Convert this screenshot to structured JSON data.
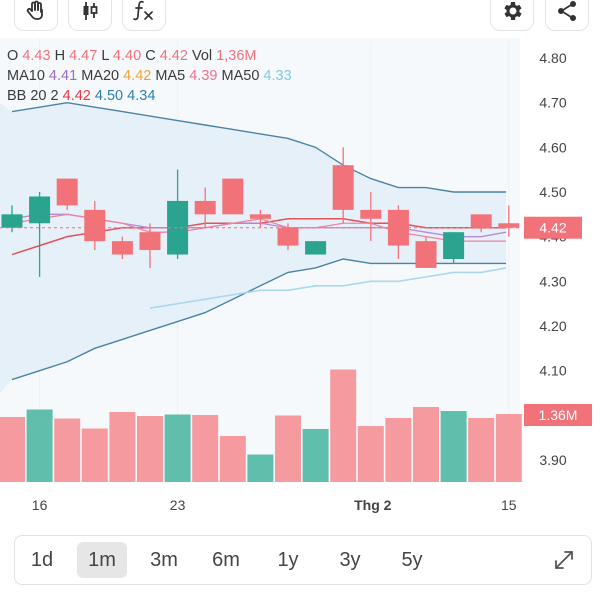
{
  "toolbar": {
    "buttons": [
      {
        "name": "drawing-tools-button",
        "icon": "hand-icon"
      },
      {
        "name": "chart-type-button",
        "icon": "candlestick-icon"
      },
      {
        "name": "indicators-button",
        "icon": "function-icon"
      },
      {
        "name": "settings-button",
        "icon": "gear-icon"
      },
      {
        "name": "share-button",
        "icon": "share-icon"
      }
    ]
  },
  "legend": {
    "line1": [
      {
        "label": "O",
        "value": "4.43",
        "color": "#f2727a"
      },
      {
        "label": "H",
        "value": "4.47",
        "color": "#f2727a"
      },
      {
        "label": "L",
        "value": "4.40",
        "color": "#f2727a"
      },
      {
        "label": "C",
        "value": "4.42",
        "color": "#f2727a"
      },
      {
        "label": "Vol",
        "value": "1,36M",
        "color": "#f2727a"
      }
    ],
    "line2": [
      {
        "label": "MA10",
        "value": "4.41",
        "color": "#9a6cc6"
      },
      {
        "label": "MA20",
        "value": "4.42",
        "color": "#f0a23a"
      },
      {
        "label": "MA5",
        "value": "4.39",
        "color": "#ef6f8a"
      },
      {
        "label": "MA50",
        "value": "4.33",
        "color": "#7fc9ea"
      }
    ],
    "line3": [
      {
        "label": "BB 20 2",
        "value": "4.42",
        "color": "#e53943"
      },
      {
        "label": "",
        "value": "4.50",
        "color": "#2f7fb0"
      },
      {
        "label": "",
        "value": "4.34",
        "color": "#2f7fb0"
      }
    ]
  },
  "timeframes": {
    "items": [
      "1d",
      "1m",
      "3m",
      "6m",
      "1y",
      "3y",
      "5y"
    ],
    "active": "1m"
  },
  "colors": {
    "up": "#2aa48e",
    "down": "#f2727a",
    "bb_band": "#4a83a6",
    "bb_mid": "#e2525a",
    "ma5": "#ef84a0",
    "ma10": "#b58bd6",
    "ma50": "#a9d8ef"
  },
  "chart_data": {
    "type": "candlestick",
    "yticks": [
      "4.80",
      "4.70",
      "4.60",
      "4.50",
      "4.40",
      "4.30",
      "4.20",
      "4.10",
      "3.90"
    ],
    "ylim": [
      3.86,
      4.84
    ],
    "x_labels": [
      {
        "index": 1,
        "label": "16"
      },
      {
        "index": 6,
        "label": "23"
      },
      {
        "index": 13,
        "label": "Thg 2"
      },
      {
        "index": 18,
        "label": "15"
      }
    ],
    "last_price_label": "4.42",
    "volume_label": "1.36M",
    "candles": [
      {
        "o": 4.42,
        "h": 4.47,
        "l": 4.41,
        "c": 4.45
      },
      {
        "o": 4.43,
        "h": 4.5,
        "l": 4.31,
        "c": 4.49
      },
      {
        "o": 4.53,
        "h": 4.53,
        "l": 4.46,
        "c": 4.47
      },
      {
        "o": 4.46,
        "h": 4.48,
        "l": 4.37,
        "c": 4.39
      },
      {
        "o": 4.39,
        "h": 4.4,
        "l": 4.35,
        "c": 4.36
      },
      {
        "o": 4.41,
        "h": 4.43,
        "l": 4.33,
        "c": 4.37
      },
      {
        "o": 4.36,
        "h": 4.55,
        "l": 4.35,
        "c": 4.48
      },
      {
        "o": 4.48,
        "h": 4.51,
        "l": 4.42,
        "c": 4.45
      },
      {
        "o": 4.53,
        "h": 4.53,
        "l": 4.45,
        "c": 4.45
      },
      {
        "o": 4.45,
        "h": 4.46,
        "l": 4.42,
        "c": 4.44
      },
      {
        "o": 4.42,
        "h": 4.43,
        "l": 4.37,
        "c": 4.38
      },
      {
        "o": 4.36,
        "h": 4.39,
        "l": 4.36,
        "c": 4.39
      },
      {
        "o": 4.56,
        "h": 4.6,
        "l": 4.43,
        "c": 4.46
      },
      {
        "o": 4.46,
        "h": 4.5,
        "l": 4.39,
        "c": 4.44
      },
      {
        "o": 4.46,
        "h": 4.47,
        "l": 4.35,
        "c": 4.38
      },
      {
        "o": 4.39,
        "h": 4.4,
        "l": 4.33,
        "c": 4.33
      },
      {
        "o": 4.35,
        "h": 4.41,
        "l": 4.34,
        "c": 4.41
      },
      {
        "o": 4.45,
        "h": 4.45,
        "l": 4.41,
        "c": 4.42
      },
      {
        "o": 4.43,
        "h": 4.47,
        "l": 4.4,
        "c": 4.42
      }
    ],
    "volume": [
      {
        "v": 1.3,
        "up": false
      },
      {
        "v": 1.45,
        "up": true
      },
      {
        "v": 1.27,
        "up": false
      },
      {
        "v": 1.07,
        "up": false
      },
      {
        "v": 1.4,
        "up": false
      },
      {
        "v": 1.32,
        "up": false
      },
      {
        "v": 1.35,
        "up": true
      },
      {
        "v": 1.34,
        "up": false
      },
      {
        "v": 0.92,
        "up": false
      },
      {
        "v": 0.55,
        "up": true
      },
      {
        "v": 1.33,
        "up": false
      },
      {
        "v": 1.06,
        "up": true
      },
      {
        "v": 2.25,
        "up": false
      },
      {
        "v": 1.12,
        "up": false
      },
      {
        "v": 1.28,
        "up": false
      },
      {
        "v": 1.5,
        "up": false
      },
      {
        "v": 1.42,
        "up": true
      },
      {
        "v": 1.28,
        "up": false
      },
      {
        "v": 1.36,
        "up": false
      }
    ],
    "bb_upper": [
      4.68,
      4.69,
      4.7,
      4.69,
      4.68,
      4.67,
      4.66,
      4.65,
      4.64,
      4.63,
      4.62,
      4.6,
      4.56,
      4.53,
      4.51,
      4.51,
      4.5,
      4.5,
      4.5
    ],
    "bb_lower": [
      4.08,
      4.1,
      4.12,
      4.15,
      4.17,
      4.19,
      4.21,
      4.23,
      4.26,
      4.29,
      4.32,
      4.33,
      4.35,
      4.34,
      4.34,
      4.34,
      4.34,
      4.34,
      4.34
    ],
    "bb_mid": [
      4.36,
      4.38,
      4.4,
      4.41,
      4.42,
      4.42,
      4.42,
      4.43,
      4.43,
      4.43,
      4.44,
      4.44,
      4.44,
      4.43,
      4.43,
      4.42,
      4.42,
      4.42,
      4.42
    ],
    "ma5": [
      4.43,
      4.44,
      4.45,
      4.44,
      4.43,
      4.41,
      4.41,
      4.42,
      4.43,
      4.44,
      4.42,
      4.42,
      4.43,
      4.43,
      4.41,
      4.4,
      4.39,
      4.39,
      4.39
    ],
    "ma10": [
      4.44,
      4.45,
      4.45,
      4.44,
      4.43,
      4.42,
      4.42,
      4.42,
      4.43,
      4.43,
      4.42,
      4.42,
      4.42,
      4.42,
      4.42,
      4.41,
      4.4,
      4.4,
      4.41
    ],
    "ma50": [
      null,
      null,
      null,
      null,
      null,
      4.24,
      4.25,
      4.26,
      4.27,
      4.28,
      4.28,
      4.29,
      4.29,
      4.3,
      4.3,
      4.31,
      4.32,
      4.32,
      4.33
    ]
  }
}
